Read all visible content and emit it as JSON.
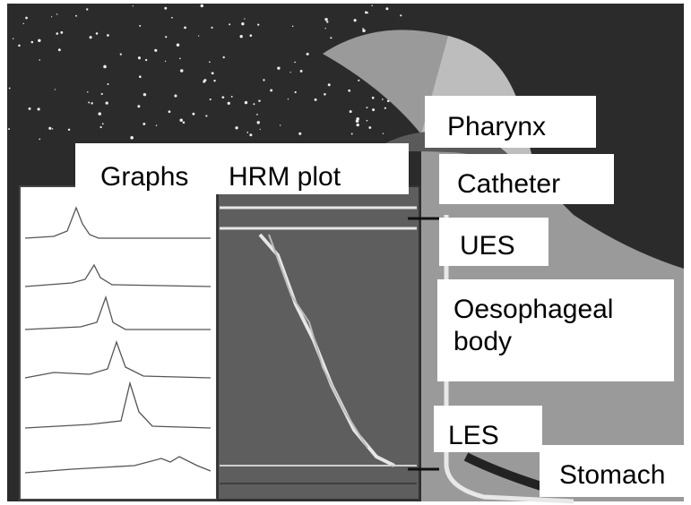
{
  "labels": {
    "graphs": "Graphs",
    "hrm_plot": "HRM plot",
    "pharynx": "Pharynx",
    "catheter": "Catheter",
    "ues": "UES",
    "oesophageal_body": "Oesophageal body",
    "les": "LES",
    "stomach": "Stomach"
  }
}
